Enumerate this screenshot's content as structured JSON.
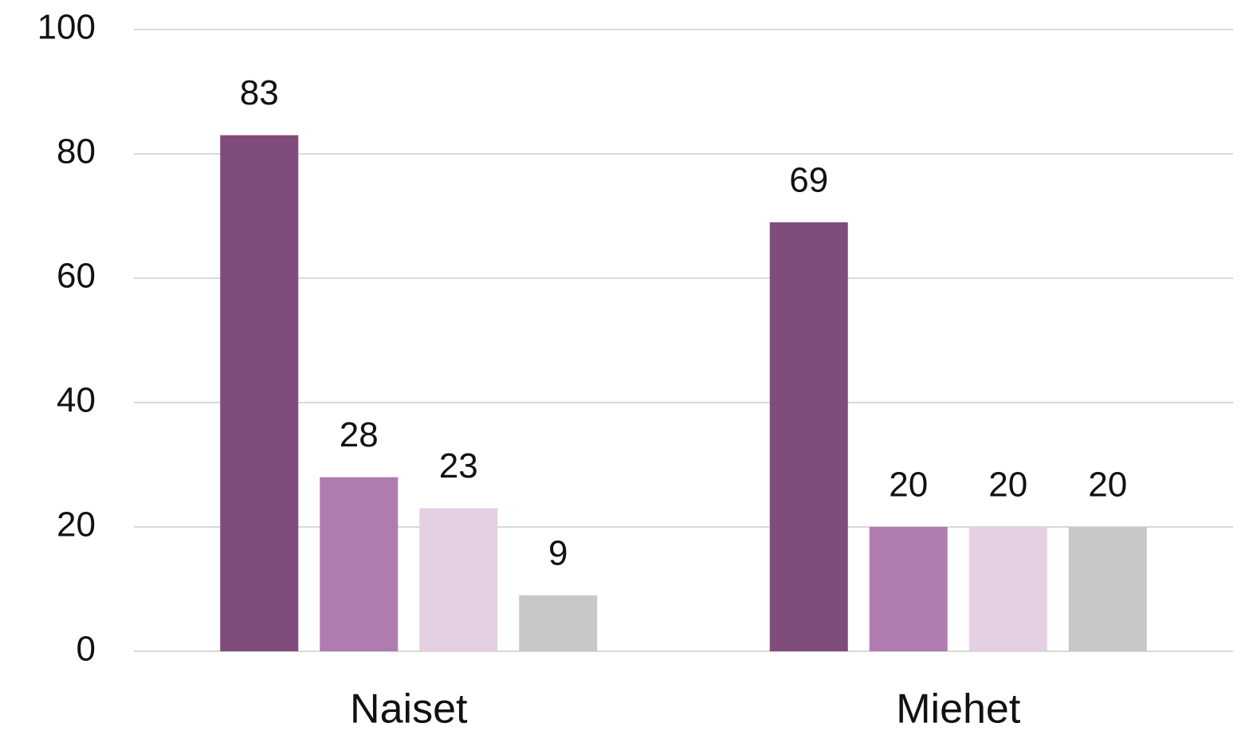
{
  "chart_data": {
    "type": "bar",
    "categories": [
      "Naiset",
      "Miehet"
    ],
    "series": [
      {
        "color": "#7f4c7c",
        "values": [
          83,
          69
        ]
      },
      {
        "color": "#b07bb0",
        "values": [
          28,
          20
        ]
      },
      {
        "color": "#e4d0e2",
        "values": [
          23,
          20
        ]
      },
      {
        "color": "#c8c8c8",
        "values": [
          9,
          20
        ]
      }
    ],
    "ylim": [
      0,
      100
    ],
    "yticks": [
      0,
      20,
      40,
      60,
      80,
      100
    ],
    "grid": true
  }
}
